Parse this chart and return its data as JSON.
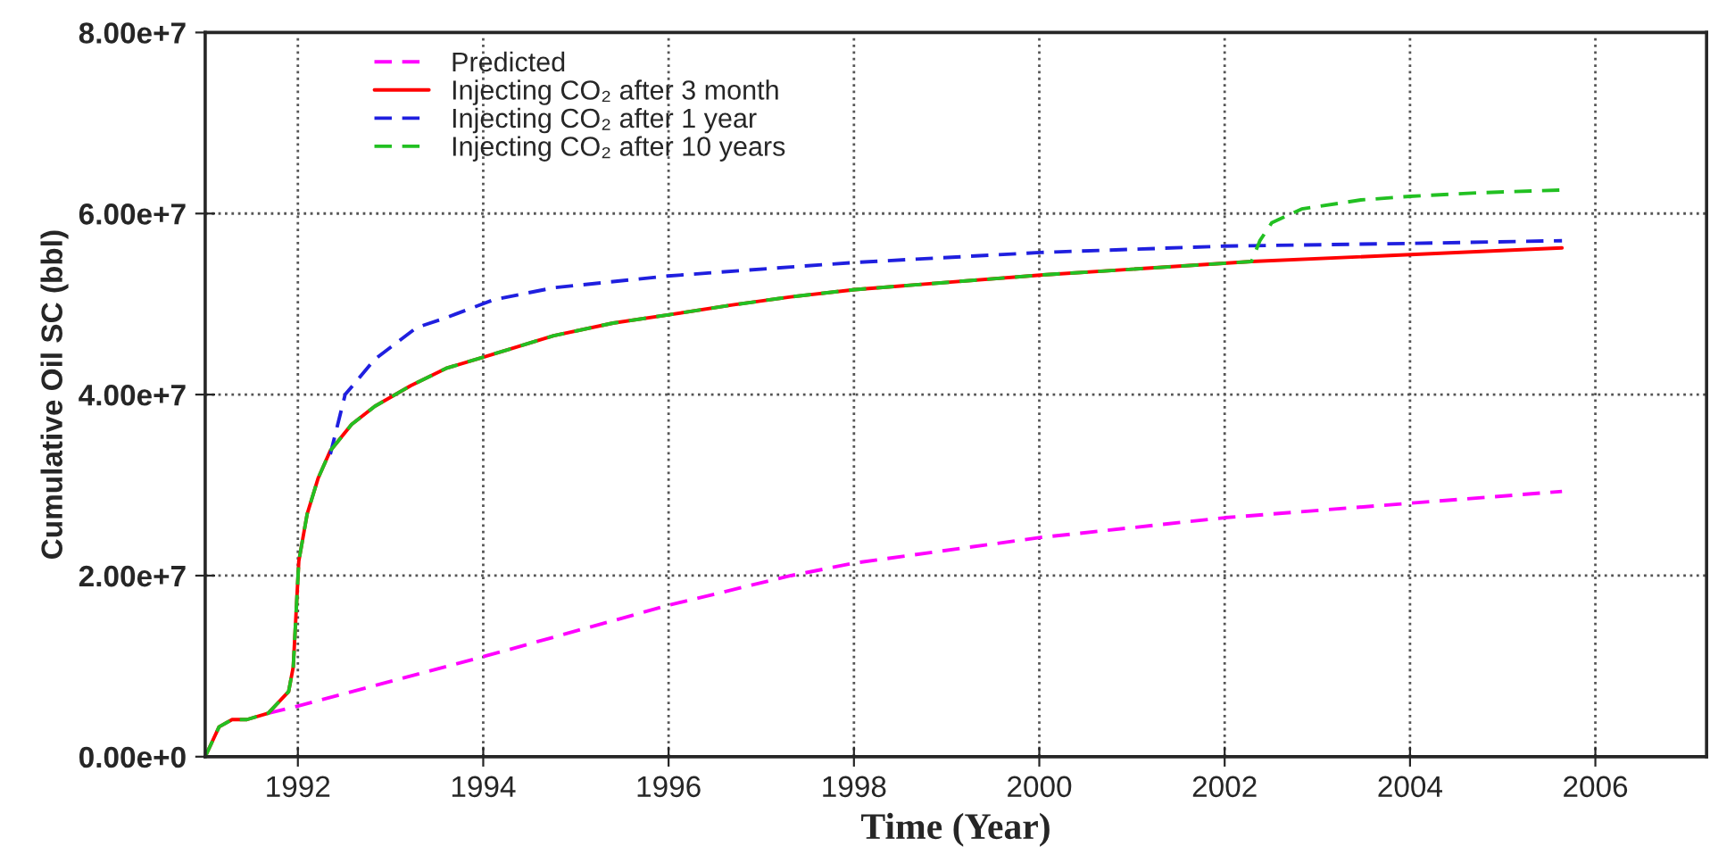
{
  "chart_data": {
    "type": "line",
    "xlabel": "Time (Year)",
    "ylabel": "Cumulative Oil SC (bbl)",
    "xlim": [
      1991,
      2007.2
    ],
    "xticks": [
      1992,
      1994,
      1996,
      1998,
      2000,
      2002,
      2004,
      2006
    ],
    "ylim": [
      0,
      80000000
    ],
    "yticks": [
      {
        "value": 0,
        "label": "0.00e+0"
      },
      {
        "value": 20000000,
        "label": "2.00e+7"
      },
      {
        "value": 40000000,
        "label": "4.00e+7"
      },
      {
        "value": 60000000,
        "label": "6.00e+7"
      },
      {
        "value": 80000000,
        "label": "8.00e+7"
      }
    ],
    "grid": true,
    "legend": "top left",
    "marker": "none",
    "series": [
      {
        "name": "Predicted",
        "color": "#ff00ff",
        "line_style": "dashed",
        "x": [
          1991.68,
          1992.0,
          1994.02,
          1995.99,
          1997.32,
          1998.01,
          2000.0,
          2002.0,
          2004.0,
          2005.64
        ],
        "values": [
          4800000,
          5600000,
          11100000,
          16700000,
          20000000,
          21400000,
          24200000,
          26400000,
          28000000,
          29300000
        ]
      },
      {
        "name": "Injecting CO₂ after 3 month",
        "color": "#ff0000",
        "line_style": "solid",
        "x": [
          1991.0,
          1991.15,
          1991.29,
          1991.45,
          1991.68,
          1991.9,
          1991.95,
          1991.97,
          1992.01,
          1992.1,
          1992.22,
          1992.35,
          1992.58,
          1992.83,
          1993.22,
          1993.6,
          1994.02,
          1994.76,
          1995.4,
          1995.99,
          1996.69,
          1997.32,
          1998.01,
          2000.01,
          2002.29,
          2005.64
        ],
        "values": [
          0,
          3300000,
          4100000,
          4100000,
          4800000,
          7200000,
          9900000,
          13800000,
          21600000,
          26800000,
          30800000,
          33800000,
          36700000,
          38700000,
          41000000,
          42900000,
          44200000,
          46500000,
          47900000,
          48800000,
          49900000,
          50800000,
          51600000,
          53200000,
          54700000,
          56200000
        ]
      },
      {
        "name": "Injecting CO₂ after 1 year",
        "color": "#1f1fdf",
        "line_style": "dashed",
        "x": [
          1992.35,
          1992.51,
          1992.83,
          1993.28,
          1993.6,
          1994.12,
          1994.76,
          1995.99,
          1997.32,
          1998.02,
          2000.01,
          2002.0,
          2004.0,
          2005.64
        ],
        "values": [
          33400000,
          40000000,
          43900000,
          47400000,
          48500000,
          50500000,
          51800000,
          53100000,
          54100000,
          54600000,
          55700000,
          56400000,
          56700000,
          57000000
        ]
      },
      {
        "name": "Injecting CO₂ after 10 years",
        "color": "#22c022",
        "line_style": "dashed",
        "x": [
          1991.0,
          1991.15,
          1991.29,
          1991.45,
          1991.68,
          1991.9,
          1991.95,
          1991.97,
          1992.01,
          1992.1,
          1992.22,
          1992.35,
          1992.58,
          1992.83,
          1993.22,
          1993.6,
          1994.02,
          1994.76,
          1995.4,
          1995.99,
          1996.69,
          1997.32,
          1998.01,
          2000.01,
          2002.29,
          2002.38,
          2002.51,
          2002.83,
          2003.47,
          2004.0,
          2004.76,
          2005.64
        ],
        "values": [
          0,
          3300000,
          4100000,
          4100000,
          4800000,
          7200000,
          9900000,
          13800000,
          21600000,
          26800000,
          30800000,
          33800000,
          36700000,
          38700000,
          41000000,
          42900000,
          44200000,
          46500000,
          47900000,
          48800000,
          49900000,
          50800000,
          51600000,
          53200000,
          54700000,
          57000000,
          59000000,
          60500000,
          61500000,
          61900000,
          62300000,
          62600000
        ]
      }
    ]
  }
}
